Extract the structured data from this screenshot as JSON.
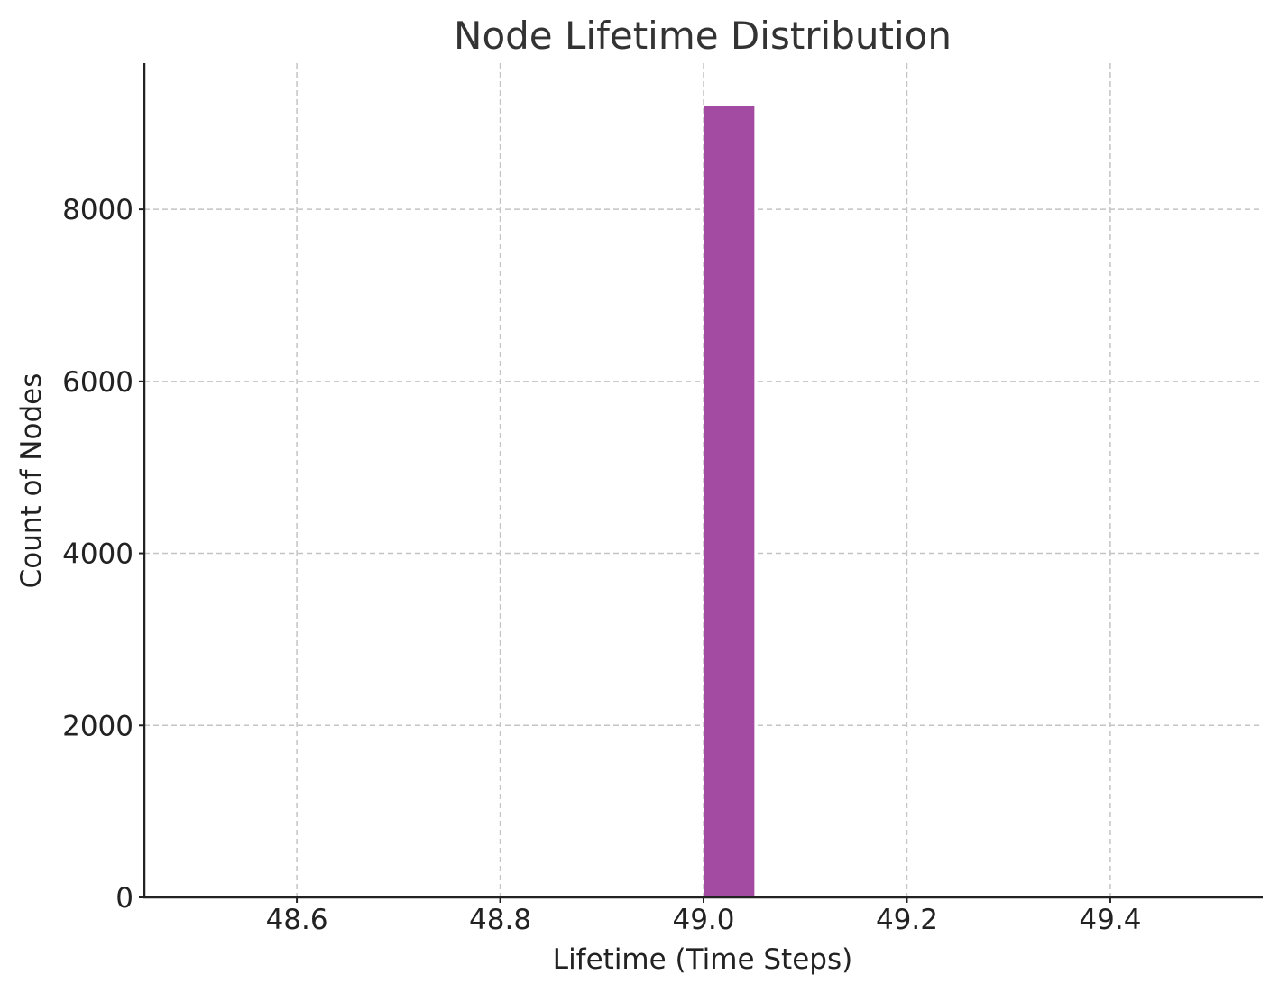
{
  "chart_data": {
    "type": "bar",
    "title": "Node Lifetime Distribution",
    "xlabel": "Lifetime (Time Steps)",
    "ylabel": "Count of Nodes",
    "xlim": [
      48.45,
      49.55
    ],
    "ylim": [
      0,
      9700
    ],
    "x_ticks": [
      {
        "value": 48.6,
        "label": "48.6"
      },
      {
        "value": 48.8,
        "label": "48.8"
      },
      {
        "value": 49.0,
        "label": "49.0"
      },
      {
        "value": 49.2,
        "label": "49.2"
      },
      {
        "value": 49.4,
        "label": "49.4"
      }
    ],
    "y_ticks": [
      {
        "value": 0,
        "label": "0"
      },
      {
        "value": 2000,
        "label": "2000"
      },
      {
        "value": 4000,
        "label": "4000"
      },
      {
        "value": 6000,
        "label": "6000"
      },
      {
        "value": 8000,
        "label": "8000"
      }
    ],
    "bins": [
      {
        "start": 49.0,
        "end": 49.05,
        "count": 9200
      }
    ],
    "bar_color": "#a34ba3",
    "grid": true,
    "grid_style": "dashed"
  }
}
